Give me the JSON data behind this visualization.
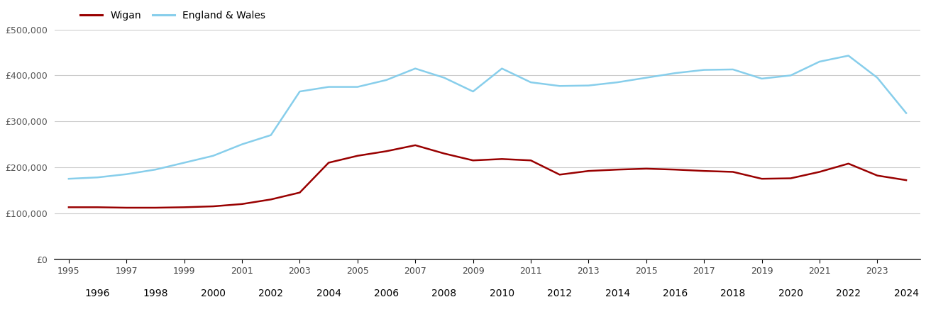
{
  "wigan_years": [
    1995,
    1996,
    1997,
    1998,
    1999,
    2000,
    2001,
    2002,
    2003,
    2004,
    2005,
    2006,
    2007,
    2008,
    2009,
    2010,
    2011,
    2012,
    2013,
    2014,
    2015,
    2016,
    2017,
    2018,
    2019,
    2020,
    2021,
    2022,
    2023,
    2024
  ],
  "wigan_values": [
    113000,
    113000,
    112000,
    112000,
    113000,
    115000,
    120000,
    130000,
    145000,
    210000,
    225000,
    235000,
    248000,
    230000,
    215000,
    218000,
    215000,
    184000,
    192000,
    195000,
    197000,
    195000,
    192000,
    190000,
    175000,
    176000,
    190000,
    208000,
    182000,
    172000
  ],
  "england_years": [
    1995,
    1996,
    1997,
    1998,
    1999,
    2000,
    2001,
    2002,
    2003,
    2004,
    2005,
    2006,
    2007,
    2008,
    2009,
    2010,
    2011,
    2012,
    2013,
    2014,
    2015,
    2016,
    2017,
    2018,
    2019,
    2020,
    2021,
    2022,
    2023,
    2024
  ],
  "england_values": [
    175000,
    178000,
    185000,
    195000,
    210000,
    225000,
    250000,
    270000,
    365000,
    375000,
    375000,
    390000,
    415000,
    395000,
    365000,
    415000,
    385000,
    377000,
    378000,
    385000,
    395000,
    405000,
    412000,
    413000,
    393000,
    400000,
    430000,
    443000,
    395000,
    318000
  ],
  "wigan_color": "#990000",
  "england_color": "#87CEEB",
  "wigan_label": "Wigan",
  "england_label": "England & Wales",
  "ylim": [
    0,
    500000
  ],
  "yticks": [
    0,
    100000,
    200000,
    300000,
    400000,
    500000
  ],
  "ytick_labels": [
    "£0",
    "£100,000",
    "£200,000",
    "£300,000",
    "£400,000",
    "£500,000"
  ],
  "background_color": "#ffffff",
  "grid_color": "#cccccc",
  "line_width": 1.8,
  "figsize": [
    13.05,
    4.5
  ],
  "dpi": 100
}
